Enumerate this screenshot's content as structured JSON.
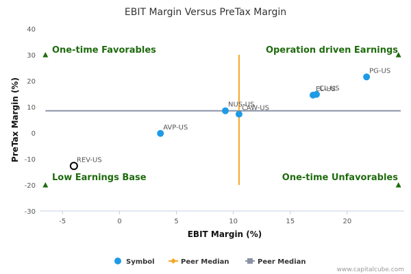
{
  "chart_data": {
    "type": "scatter",
    "title": "EBIT Margin Versus PreTax Margin",
    "xlabel": "EBIT Margin (%)",
    "ylabel": "PreTax Margin (%)",
    "xlim": [
      -7,
      25
    ],
    "ylim": [
      -30,
      40
    ],
    "x_ticks": [
      -5,
      0,
      5,
      10,
      15,
      20
    ],
    "y_ticks": [
      40,
      30,
      20,
      10,
      0,
      -10,
      -20,
      -30
    ],
    "grid": false,
    "legend_position": "bottom",
    "points": [
      {
        "label": "PG-US",
        "x": 21.7,
        "y": 21.5
      },
      {
        "label": "EL-US",
        "x": 17.0,
        "y": 14.5
      },
      {
        "label": "CL-US",
        "x": 17.3,
        "y": 14.8
      },
      {
        "label": "NUS-US",
        "x": 9.3,
        "y": 8.5
      },
      {
        "label": "CAW-US",
        "x": 10.5,
        "y": 7.2
      },
      {
        "label": "AVP-US",
        "x": 3.6,
        "y": -0.2
      },
      {
        "label": "REV-US",
        "x": -4.0,
        "y": -12.7,
        "style": "hollow"
      }
    ],
    "peer_median_x": 10.5,
    "peer_median_y": 8.5,
    "peer_median_x_range": [
      -20,
      30
    ],
    "quadrants": {
      "top_left": "One-time Favorables",
      "top_right": "Operation driven Earnings",
      "bottom_left": "Low Earnings Base",
      "bottom_right": "One-time Unfavorables"
    },
    "legend": [
      {
        "label": "Symbol",
        "color": "#1e9be6"
      },
      {
        "label": "Peer Median",
        "color": "#f5a623"
      },
      {
        "label": "Peer Median",
        "color": "#8a93a6"
      }
    ]
  },
  "credit": "www.capitalcube.com",
  "colors": {
    "point": "#1e9be6",
    "vertical_median": "#f5a623",
    "horizontal_median": "#8a93a6",
    "quadrant_text": "#1e6b0e",
    "marker": "#1e6b0e"
  }
}
